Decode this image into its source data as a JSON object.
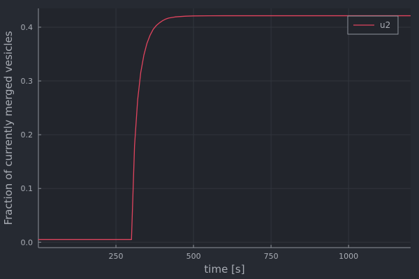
{
  "chart_data": {
    "type": "line",
    "xlabel": "time [s]",
    "ylabel": "Fraction of currently merged vesicles",
    "xlim": [
      0,
      1200
    ],
    "ylim": [
      -0.01,
      0.435
    ],
    "xticks": [
      250,
      500,
      750,
      1000
    ],
    "yticks": [
      0.0,
      0.1,
      0.2,
      0.3,
      0.4
    ],
    "xtick_labels": [
      "250",
      "500",
      "750",
      "1000"
    ],
    "ytick_labels": [
      "0.0",
      "0.1",
      "0.2",
      "0.3",
      "0.4"
    ],
    "grid": true,
    "legend_position": "top-right",
    "series": [
      {
        "name": "u2",
        "color": "#e0445e",
        "x": [
          0,
          100,
          200,
          300,
          310,
          320,
          330,
          340,
          350,
          360,
          370,
          380,
          390,
          400,
          410,
          420,
          430,
          440,
          450,
          475,
          500,
          550,
          600,
          700,
          800,
          900,
          1000,
          1100,
          1200
        ],
        "y": [
          0.005,
          0.005,
          0.005,
          0.005,
          0.18,
          0.265,
          0.316,
          0.348,
          0.37,
          0.385,
          0.396,
          0.403,
          0.408,
          0.412,
          0.415,
          0.417,
          0.418,
          0.419,
          0.4195,
          0.4205,
          0.421,
          0.4212,
          0.4213,
          0.4213,
          0.4213,
          0.4213,
          0.4213,
          0.4213,
          0.4213
        ]
      }
    ]
  },
  "colors": {
    "background": "#262a32",
    "plot_background": "#22252c",
    "grid": "#31353d",
    "axis": "#8f939b",
    "text": "#a9adb5"
  }
}
